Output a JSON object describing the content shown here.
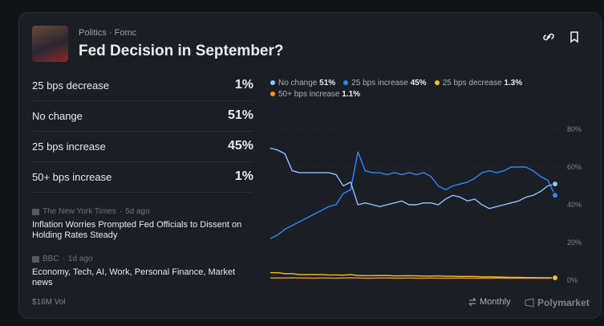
{
  "header": {
    "category": "Politics",
    "tag": "Fomc",
    "title": "Fed Decision in September?"
  },
  "outcomes": [
    {
      "label": "25 bps decrease",
      "chance": "1%"
    },
    {
      "label": "No change",
      "chance": "51%"
    },
    {
      "label": "25 bps increase",
      "chance": "45%"
    },
    {
      "label": "50+ bps increase",
      "chance": "1%"
    }
  ],
  "news": [
    {
      "source": "The New York Times",
      "age": "5d ago",
      "title": "Inflation Worries Prompted Fed Officials to Dissent on Holding Rates Steady"
    },
    {
      "source": "BBC",
      "age": "1d ago",
      "title": "Economy, Tech, AI, Work, Personal Finance, Market news"
    }
  ],
  "footer": {
    "volume": "$16M Vol",
    "interval": "Monthly",
    "brand": "Polymarket"
  },
  "chart_data": {
    "type": "line",
    "ylim": [
      0,
      80
    ],
    "yticks": [
      {
        "value": 0,
        "label": "0%"
      },
      {
        "value": 20,
        "label": "20%"
      },
      {
        "value": 40,
        "label": "40%"
      },
      {
        "value": 60,
        "label": "60%"
      },
      {
        "value": 80,
        "label": "80%"
      }
    ],
    "grid": true,
    "series": [
      {
        "name": "No change",
        "current": "51%",
        "color": "#8fc1ff",
        "values": [
          70,
          69,
          67,
          58,
          57,
          57,
          57,
          57,
          57,
          56,
          50,
          52,
          40,
          41,
          40,
          39,
          40,
          41,
          42,
          40,
          40,
          41,
          41,
          40,
          43,
          45,
          44,
          42,
          43,
          40,
          38,
          39,
          40,
          41,
          42,
          44,
          45,
          47,
          50,
          51
        ]
      },
      {
        "name": "25 bps increase",
        "current": "45%",
        "color": "#2f86f6",
        "values": [
          22,
          24,
          27,
          29,
          31,
          33,
          35,
          37,
          39,
          40,
          46,
          48,
          68,
          58,
          57,
          57,
          56,
          57,
          56,
          57,
          56,
          57,
          55,
          50,
          48,
          50,
          51,
          52,
          54,
          57,
          58,
          57,
          58,
          60,
          60,
          60,
          58,
          55,
          53,
          45
        ]
      },
      {
        "name": "25 bps decrease",
        "current": "1.3%",
        "color": "#f3c21b",
        "values": [
          4,
          4,
          3.5,
          3.5,
          3,
          3,
          3,
          3,
          2.8,
          2.8,
          2.7,
          3,
          2.5,
          2.4,
          2.4,
          2.5,
          2.5,
          2.3,
          2.3,
          2.4,
          2.3,
          2.2,
          2.2,
          2.3,
          2.1,
          2.1,
          2,
          2,
          2,
          1.8,
          1.8,
          1.7,
          1.6,
          1.5,
          1.5,
          1.4,
          1.4,
          1.3,
          1.3,
          1.3
        ]
      },
      {
        "name": "50+ bps increase",
        "current": "1.1%",
        "color": "#f7931e",
        "values": [
          1.2,
          1.2,
          1.2,
          1.3,
          1.2,
          1.2,
          1.1,
          1.2,
          1.2,
          1.1,
          1.2,
          1.3,
          1.2,
          1.1,
          1.1,
          1.2,
          1.2,
          1.1,
          1.1,
          1.2,
          1.1,
          1.1,
          1.2,
          1.1,
          1.1,
          1.1,
          1.2,
          1.1,
          1.1,
          1.1,
          1.1,
          1.2,
          1.1,
          1.1,
          1.1,
          1.1,
          1.1,
          1.1,
          1.1,
          1.1
        ]
      }
    ]
  }
}
